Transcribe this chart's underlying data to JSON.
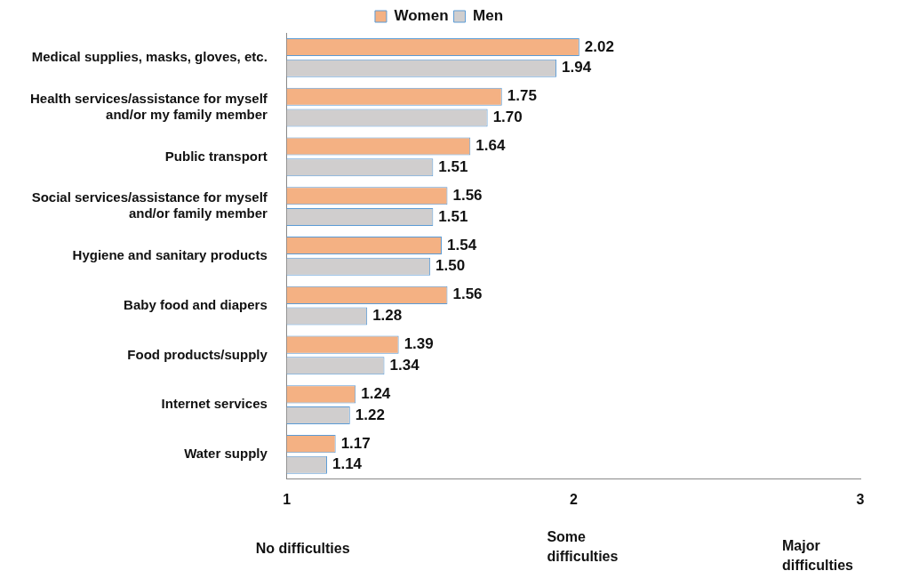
{
  "chart_data": {
    "type": "bar",
    "orientation": "horizontal",
    "categories": [
      "Medical supplies, masks, gloves, etc.",
      "Health services/assistance for myself and/or my family member",
      "Public transport",
      "Social services/assistance for myself and/or family member",
      "Hygiene and sanitary products",
      "Baby food and diapers",
      "Food products/supply",
      "Internet services",
      "Water supply"
    ],
    "series": [
      {
        "name": "Women",
        "color": "#f4b183",
        "values": [
          2.02,
          1.75,
          1.64,
          1.56,
          1.54,
          1.56,
          1.39,
          1.24,
          1.17
        ],
        "value_labels": [
          "2.02",
          "1.75",
          "1.64",
          "1.56",
          "1.54",
          "1.56",
          "1.39",
          "1.24",
          "1.17"
        ]
      },
      {
        "name": "Men",
        "color": "#d0cece",
        "values": [
          1.94,
          1.7,
          1.51,
          1.51,
          1.5,
          1.28,
          1.34,
          1.22,
          1.14
        ],
        "value_labels": [
          "1.94",
          "1.70",
          "1.51",
          "1.51",
          "1.50",
          "1.28",
          "1.34",
          "1.22",
          "1.14"
        ]
      }
    ],
    "xlim": [
      1,
      3
    ],
    "xticks": [
      1,
      2,
      3
    ],
    "grid": false,
    "legend": "top",
    "annotations": [
      "No difficulties",
      "Some difficulties",
      "Major difficulties"
    ]
  }
}
